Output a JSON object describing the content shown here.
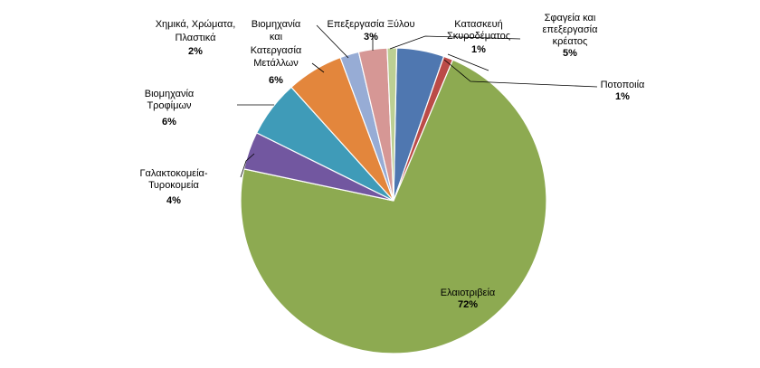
{
  "chart_data": {
    "type": "pie",
    "title": "",
    "slices": [
      {
        "name": "Σφαγεία και επεξεργασία κρέατος",
        "value": 5,
        "label": "5%",
        "color": "#4f77b0"
      },
      {
        "name": "Ποτοποιία",
        "value": 1,
        "label": "1%",
        "color": "#bb4b48"
      },
      {
        "name": "Ελαιοτριβεία",
        "value": 72,
        "label": "72%",
        "color": "#8daa51"
      },
      {
        "name": "Γαλακτοκομεία-Τυροκομεία",
        "value": 4,
        "label": "4%",
        "color": "#7257a0"
      },
      {
        "name": "Βιομηχανία Τροφίμων",
        "value": 6,
        "label": "6%",
        "color": "#3f9bb8"
      },
      {
        "name": "Βιομηχανία και Κατεργασία Μετάλλων",
        "value": 6,
        "label": "6%",
        "color": "#e3863c"
      },
      {
        "name": "Χημικά, Χρώματα, Πλαστικά",
        "value": 2,
        "label": "2%",
        "color": "#97acd5"
      },
      {
        "name": "Επεξεργασία Ξύλου",
        "value": 3,
        "label": "3%",
        "color": "#d69795"
      },
      {
        "name": "Κατασκευή Σκυροδέματος",
        "value": 1,
        "label": "1%",
        "color": "#bccf93"
      }
    ]
  }
}
